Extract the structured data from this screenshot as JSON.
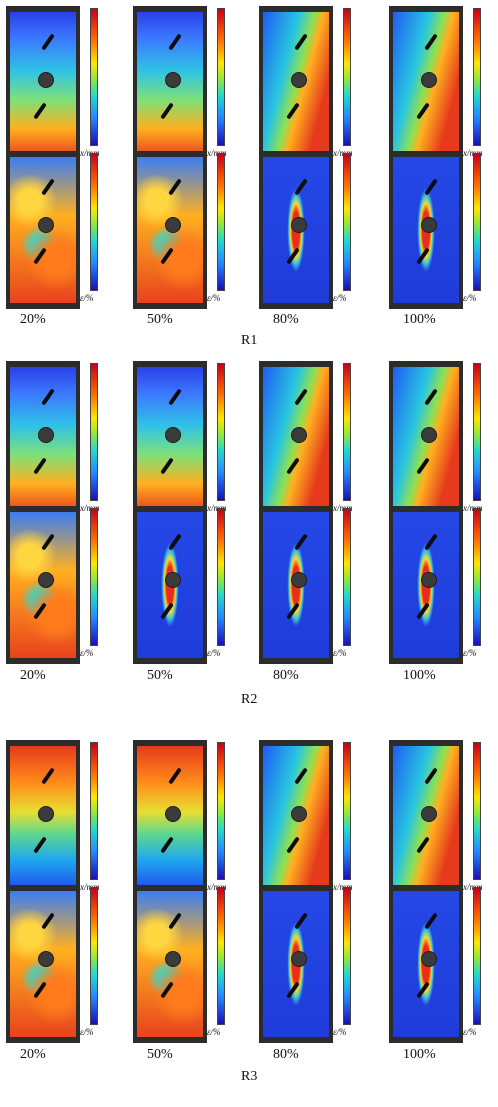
{
  "figure": {
    "group_labels": [
      "R1",
      "R2",
      "R3"
    ],
    "percent_labels": [
      "20%",
      "50%",
      "80%",
      "100%"
    ],
    "colorbar_labels": {
      "displacement": "x/mm",
      "strain": "ε/%"
    }
  }
}
